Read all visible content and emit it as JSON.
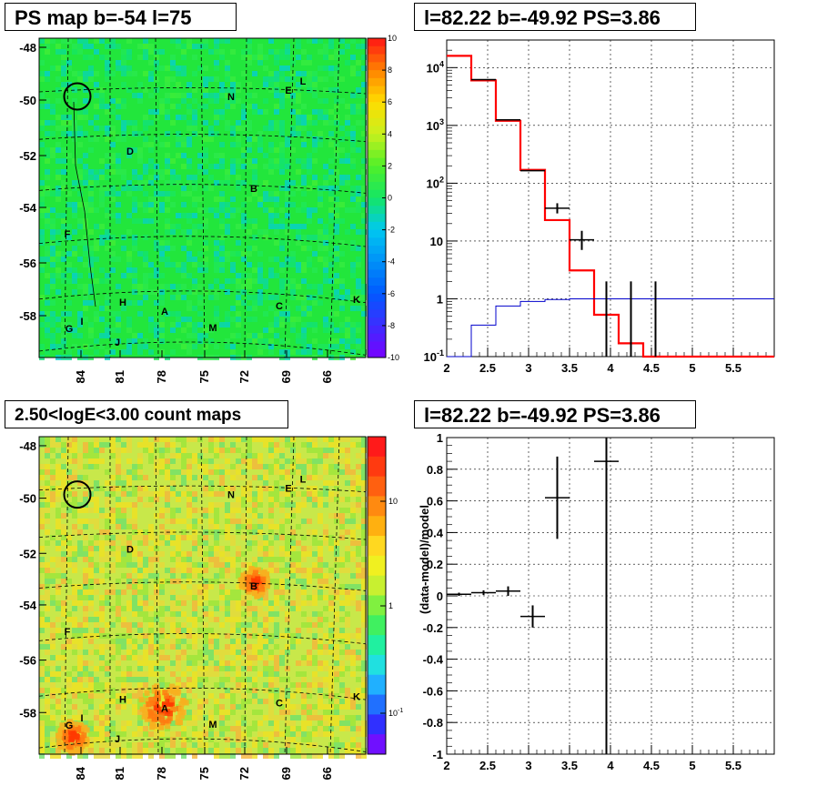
{
  "titles": {
    "ps_map": "PS map b=-54 l=75",
    "spectrum": "l=82.22 b=-49.92 PS=3.86",
    "count_map": "2.50<logE<3.00 count maps",
    "residual": "l=82.22 b=-49.92 PS=3.86"
  },
  "colors": {
    "ps_map_bg": "#22e63c",
    "count_map_bg": "#c8e84a",
    "source_circle": "#000000",
    "model_total": "#ff0000",
    "model_background": "#0000cc",
    "data": "#000000"
  },
  "chart_data": [
    {
      "type": "heatmap",
      "name": "ps_map",
      "title": "PS map b=-54 l=75",
      "y_ticks": [
        "-48",
        "-50",
        "-52",
        "-54",
        "-56",
        "-58"
      ],
      "x_ticks": [
        "84",
        "81",
        "78",
        "75",
        "72",
        "69",
        "66"
      ],
      "colorbar": {
        "ticks": [
          "10",
          "8",
          "6",
          "4",
          "2",
          "0",
          "-2",
          "-4",
          "-6",
          "-8",
          "-10"
        ],
        "range": [
          -10,
          10
        ]
      },
      "source_labels": [
        "L",
        "E",
        "N",
        "D",
        "B",
        "F",
        "K",
        "H",
        "C",
        "A",
        "G",
        "I",
        "M",
        "J"
      ],
      "circle": {
        "l": 82.22,
        "b": -49.92
      }
    },
    {
      "type": "line",
      "name": "spectrum",
      "title": "l=82.22 b=-49.92 PS=3.86",
      "scale": "log-y",
      "xlim": [
        2,
        6
      ],
      "ylim": [
        0.1,
        30000
      ],
      "x_ticks": [
        "2",
        "2.5",
        "3",
        "3.5",
        "4",
        "4.5",
        "5",
        "5.5"
      ],
      "y_ticks": [
        "10^4",
        "10^3",
        "10^2",
        "10",
        "1",
        "10^-1"
      ],
      "grid": true,
      "bin_edges": [
        2.0,
        2.3,
        2.6,
        2.9,
        3.2,
        3.5,
        3.8,
        4.1,
        4.4,
        4.7,
        5.0,
        5.3,
        5.6,
        6.0
      ],
      "series": [
        {
          "values": [
            16000,
            6000,
            1200,
            170,
            23,
            3.1,
            0.53,
            0.17,
            0.1,
            0.1,
            0.1,
            0.1,
            0.1
          ]
        },
        {
          "values": [
            0.1,
            0.35,
            0.75,
            0.9,
            0.97,
            1.0,
            1.0,
            1.0,
            1.0,
            1.0,
            1.0,
            1.0,
            1.0
          ]
        }
      ],
      "points": [
        {
          "x": 2.45,
          "y": 6200,
          "xerr": 0.15
        },
        {
          "x": 2.75,
          "y": 1250,
          "xerr": 0.15
        },
        {
          "x": 3.05,
          "y": 165,
          "xerr": 0.15
        },
        {
          "x": 3.35,
          "y": 37,
          "xerr": 0.15,
          "ylo": 30,
          "yhi": 45
        },
        {
          "x": 3.65,
          "y": 10.5,
          "xerr": 0.15,
          "ylo": 7,
          "yhi": 15
        },
        {
          "x": 3.95,
          "y": 0.1,
          "ylo": 0.1,
          "yhi": 2
        },
        {
          "x": 4.25,
          "y": 0.1,
          "ylo": 0.1,
          "yhi": 2
        },
        {
          "x": 4.55,
          "y": 0.1,
          "ylo": 0.1,
          "yhi": 2
        }
      ]
    },
    {
      "type": "heatmap",
      "name": "count_map",
      "title": "2.50<logE<3.00 count maps",
      "y_ticks": [
        "-48",
        "-50",
        "-52",
        "-54",
        "-56",
        "-58"
      ],
      "x_ticks": [
        "84",
        "81",
        "78",
        "75",
        "72",
        "69",
        "66"
      ],
      "colorbar": {
        "ticks": [
          "10",
          "1",
          "10^-1"
        ],
        "scale": "log"
      },
      "source_labels": [
        "L",
        "E",
        "N",
        "D",
        "B",
        "F",
        "K",
        "H",
        "C",
        "A",
        "G",
        "I",
        "M",
        "J"
      ],
      "circle": {
        "l": 82.22,
        "b": -49.92
      }
    },
    {
      "type": "scatter",
      "name": "residual",
      "title": "l=82.22 b=-49.92 PS=3.86",
      "ylabel": "(data-model)/model",
      "xlim": [
        2,
        6
      ],
      "ylim": [
        -1,
        1
      ],
      "x_ticks": [
        "2",
        "2.5",
        "3",
        "3.5",
        "4",
        "4.5",
        "5",
        "5.5"
      ],
      "y_ticks": [
        "1",
        "0.8",
        "0.6",
        "0.4",
        "0.2",
        "0",
        "-0.2",
        "-0.4",
        "-0.6",
        "-0.8",
        "-1"
      ],
      "grid": true,
      "points": [
        {
          "x": 2.15,
          "y": 0.01,
          "xerr": 0.15,
          "yerr": 0.01
        },
        {
          "x": 2.45,
          "y": 0.02,
          "xerr": 0.15,
          "yerr": 0.015
        },
        {
          "x": 2.75,
          "y": 0.03,
          "xerr": 0.15,
          "yerr": 0.03
        },
        {
          "x": 3.05,
          "y": -0.13,
          "xerr": 0.15,
          "yerr": 0.07
        },
        {
          "x": 3.35,
          "y": 0.62,
          "xerr": 0.15,
          "yerr": 0.26
        },
        {
          "x": 3.95,
          "y": 0.85,
          "xerr": 0.15,
          "ylo": -1,
          "yhi": 1
        }
      ]
    }
  ]
}
